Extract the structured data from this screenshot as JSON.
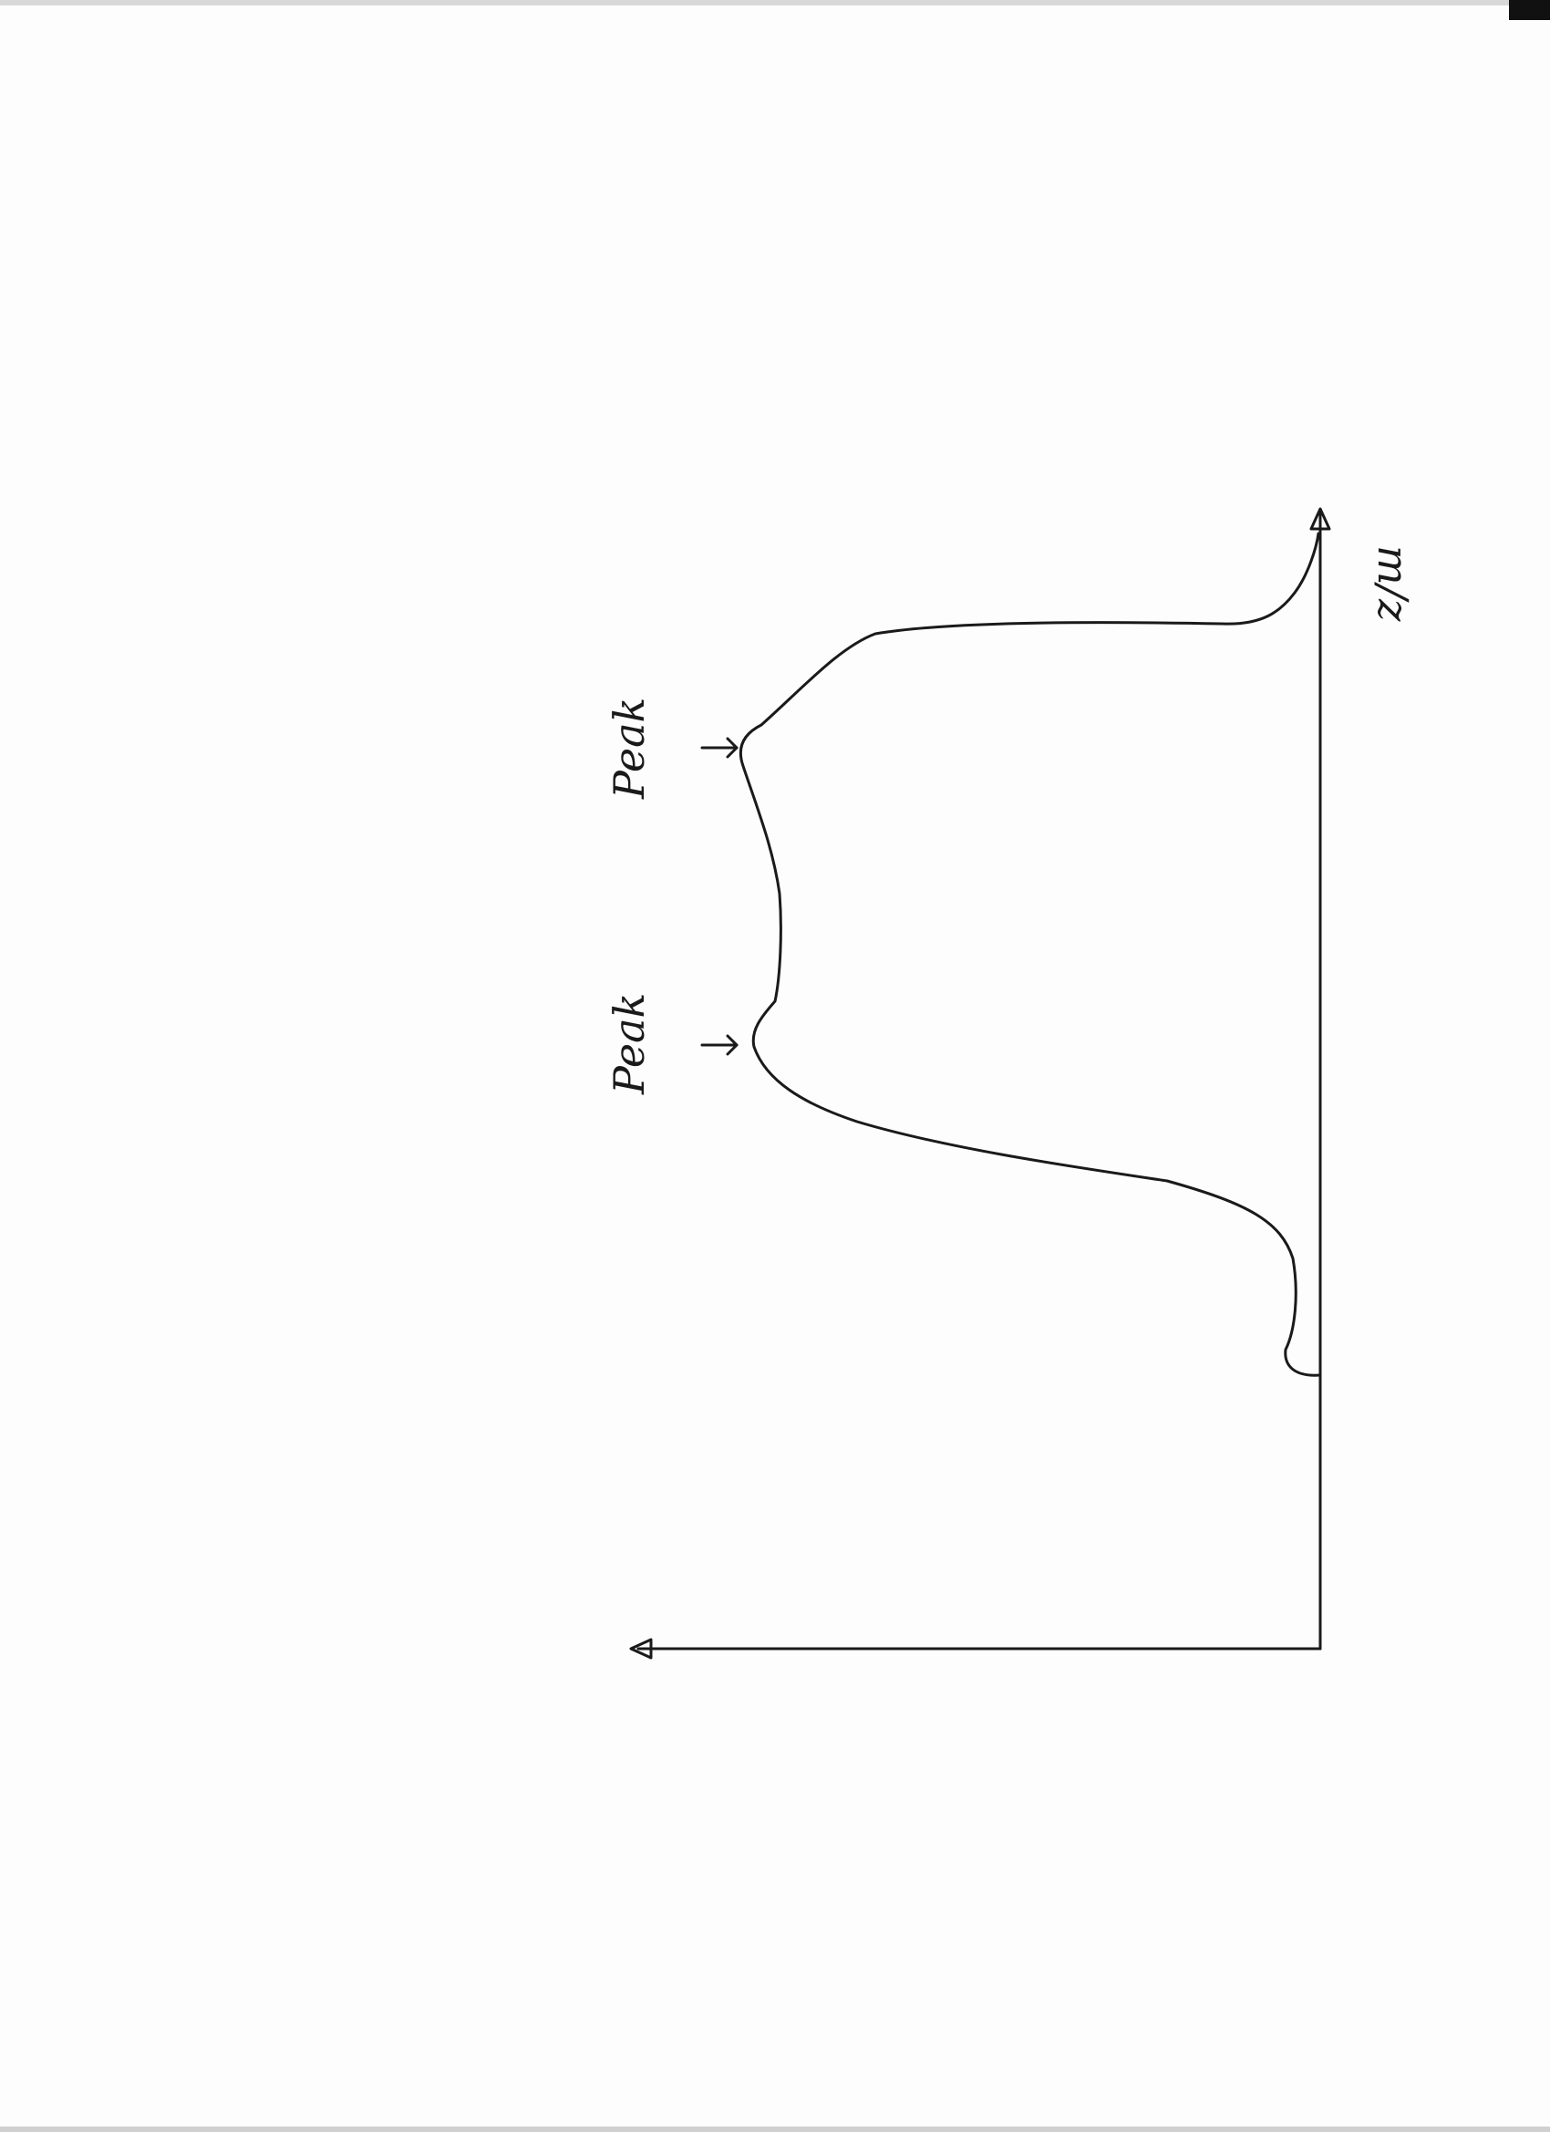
{
  "sketch": {
    "peak_label_1": "Peak",
    "peak_label_2": "Peak",
    "x_axis_label": "m/z"
  },
  "colors": {
    "paper": "#fdfdfd",
    "ink": "#1a1a1a",
    "scan_edge": "#111111"
  }
}
